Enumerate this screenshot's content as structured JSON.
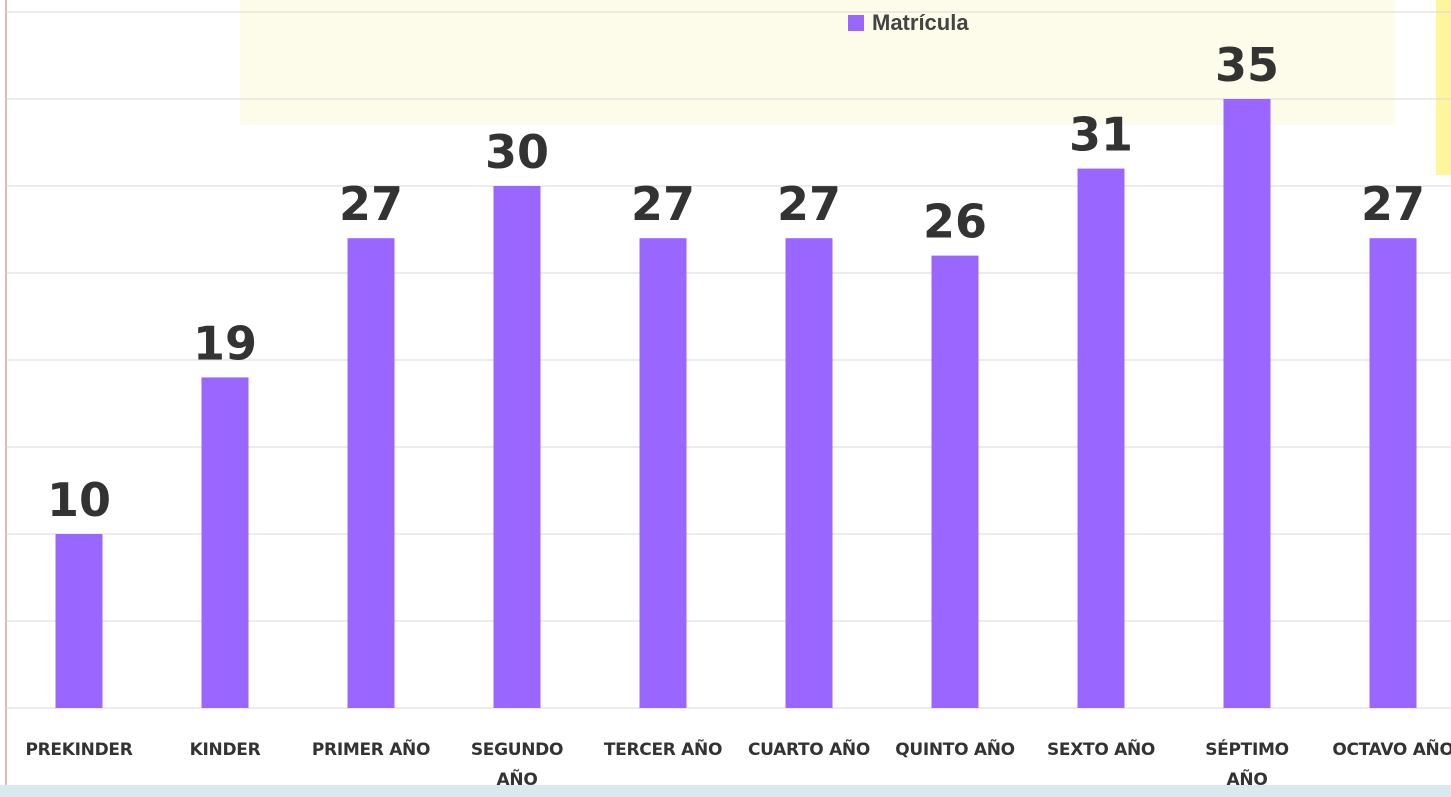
{
  "chart_data": {
    "type": "bar",
    "legend": "Matrícula",
    "color": "#9966ff",
    "categories": [
      "PREKINDER",
      "KINDER",
      "PRIMER AÑO",
      "SEGUNDO AÑO",
      "TERCER AÑO",
      "CUARTO AÑO",
      "QUINTO AÑO",
      "SEXTO AÑO",
      "SÉPTIMO AÑO",
      "OCTAVO AÑO"
    ],
    "values": [
      10,
      19,
      27,
      30,
      27,
      27,
      26,
      31,
      35,
      27
    ],
    "ylim": [
      0,
      40
    ],
    "yticks": [
      0,
      5,
      10,
      15,
      20,
      25,
      30,
      35,
      40
    ],
    "grid": true
  }
}
